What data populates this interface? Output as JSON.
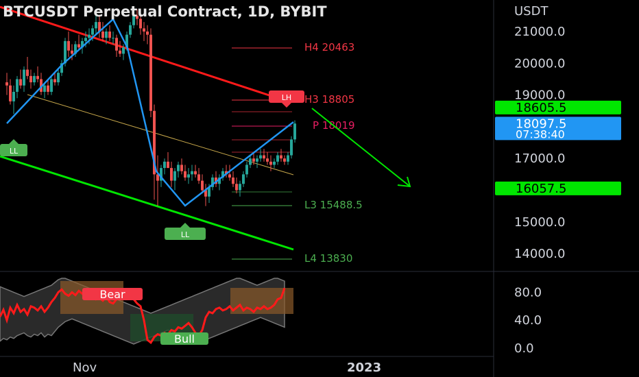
{
  "header": {
    "title": "BTCUSDT Perpetual Contract, 1D, BYBIT"
  },
  "price_axis": {
    "currency": "USDT",
    "ticks": [
      "21000.0",
      "20000.0",
      "19000.0",
      "17000.0",
      "15000.0",
      "14000.0"
    ],
    "badges": [
      {
        "id": "target-high",
        "text": "18605.5",
        "color": "#00e600",
        "text_color": "#000000"
      },
      {
        "id": "last-price",
        "text": "18097.5",
        "sub": "07:38:40",
        "color": "#2196f3",
        "text_color": "#ffffff"
      },
      {
        "id": "target-low",
        "text": "16057.5",
        "color": "#00e600",
        "text_color": "#000000"
      }
    ]
  },
  "pivot_levels": [
    {
      "label": "H4 20463",
      "value": 20463,
      "color": "#f23645"
    },
    {
      "label": "H3 18805",
      "value": 18805,
      "color": "#f23645"
    },
    {
      "label": "P 18019",
      "value": 18019,
      "color": "#e91e63"
    },
    {
      "label": "L3 15488.5",
      "value": 15488.5,
      "color": "#4caf50"
    },
    {
      "label": "L4 13830",
      "value": 13830,
      "color": "#4caf50"
    }
  ],
  "markers": [
    {
      "text": "LH",
      "color": "#f23645"
    },
    {
      "text": "LL",
      "color": "#4caf50"
    },
    {
      "text": "LL",
      "color": "#4caf50"
    }
  ],
  "oscillator": {
    "ticks": [
      "80.0",
      "40.0",
      "0.0"
    ],
    "labels": [
      {
        "text": "Bear",
        "color": "#f23645"
      },
      {
        "text": "Bull",
        "color": "#4caf50"
      }
    ]
  },
  "time_axis": {
    "ticks": [
      "Nov",
      "2023"
    ]
  },
  "colors": {
    "up": "#26a69a",
    "down": "#ef5350",
    "channel_top": "#ff1a1a",
    "channel_bottom": "#00e600",
    "zigzag": "#2196f3",
    "projection": "#00e600",
    "midline": "#c8a84b"
  },
  "chart_data": [
    {
      "type": "candlestick",
      "title": "BTCUSDT Perpetual Contract, 1D, BYBIT",
      "ylabel": "USDT",
      "ylim": [
        13500,
        22000
      ],
      "ohlc": [
        [
          19400,
          19700,
          19000,
          19300
        ],
        [
          19300,
          19500,
          18700,
          18800
        ],
        [
          18800,
          19300,
          18400,
          19100
        ],
        [
          19100,
          19600,
          18900,
          19500
        ],
        [
          19500,
          19800,
          19200,
          19300
        ],
        [
          19300,
          19900,
          19100,
          19800
        ],
        [
          19800,
          20200,
          19500,
          19600
        ],
        [
          19600,
          19800,
          19200,
          19400
        ],
        [
          19400,
          19700,
          19300,
          19600
        ],
        [
          19600,
          19900,
          19400,
          19500
        ],
        [
          19500,
          19700,
          19000,
          19100
        ],
        [
          19100,
          19400,
          18900,
          19300
        ],
        [
          19300,
          19500,
          19000,
          19100
        ],
        [
          19100,
          19600,
          19000,
          19500
        ],
        [
          19500,
          19700,
          19300,
          19400
        ],
        [
          19400,
          19800,
          19300,
          19700
        ],
        [
          19700,
          20100,
          19600,
          20000
        ],
        [
          20000,
          20800,
          19900,
          20700
        ],
        [
          20700,
          21000,
          20200,
          20400
        ],
        [
          20400,
          20600,
          20100,
          20300
        ],
        [
          20300,
          20700,
          20200,
          20600
        ],
        [
          20600,
          20900,
          20400,
          20500
        ],
        [
          20500,
          20800,
          20300,
          20700
        ],
        [
          20700,
          21000,
          20500,
          20800
        ],
        [
          20800,
          21100,
          20600,
          20900
        ],
        [
          20900,
          21200,
          20700,
          21100
        ],
        [
          21100,
          21500,
          20900,
          21300
        ],
        [
          21300,
          21500,
          20800,
          21000
        ],
        [
          21000,
          21300,
          20700,
          20800
        ],
        [
          20800,
          21100,
          20600,
          21000
        ],
        [
          21000,
          21200,
          20700,
          20800
        ],
        [
          20800,
          21000,
          20600,
          20800
        ],
        [
          20800,
          20900,
          20200,
          20400
        ],
        [
          20400,
          20700,
          20200,
          20300
        ],
        [
          20300,
          20600,
          20100,
          20500
        ],
        [
          20500,
          21000,
          20400,
          20900
        ],
        [
          20900,
          21300,
          20800,
          21200
        ],
        [
          21200,
          21600,
          21100,
          21500
        ],
        [
          21500,
          21700,
          21200,
          21400
        ],
        [
          21400,
          21600,
          20900,
          21100
        ],
        [
          21100,
          21300,
          20700,
          21000
        ],
        [
          21000,
          21200,
          20600,
          20900
        ],
        [
          20900,
          21100,
          18300,
          18500
        ],
        [
          18500,
          18700,
          15700,
          16500
        ],
        [
          16500,
          17100,
          15500,
          16300
        ],
        [
          16300,
          16800,
          16100,
          16700
        ],
        [
          16700,
          17000,
          16500,
          16900
        ],
        [
          16900,
          17200,
          16700,
          16700
        ],
        [
          16700,
          16900,
          16100,
          16300
        ],
        [
          16300,
          16700,
          16000,
          16600
        ],
        [
          16600,
          16900,
          16400,
          16800
        ],
        [
          16800,
          17000,
          16500,
          16600
        ],
        [
          16600,
          16800,
          16300,
          16400
        ],
        [
          16400,
          16700,
          16200,
          16500
        ],
        [
          16500,
          16800,
          16300,
          16600
        ],
        [
          16600,
          16800,
          16400,
          16500
        ],
        [
          16500,
          16700,
          16200,
          16300
        ],
        [
          16300,
          16500,
          15900,
          16000
        ],
        [
          16000,
          16200,
          15500,
          15800
        ],
        [
          15800,
          16200,
          15600,
          16100
        ],
        [
          16100,
          16500,
          16000,
          16400
        ],
        [
          16400,
          16600,
          16100,
          16200
        ],
        [
          16200,
          16500,
          16000,
          16400
        ],
        [
          16400,
          16700,
          16300,
          16600
        ],
        [
          16600,
          16800,
          16400,
          16500
        ],
        [
          16500,
          16800,
          16300,
          16400
        ],
        [
          16400,
          16600,
          16100,
          16200
        ],
        [
          16200,
          16400,
          15900,
          16000
        ],
        [
          16000,
          16300,
          15800,
          16200
        ],
        [
          16200,
          16600,
          16100,
          16500
        ],
        [
          16500,
          16900,
          16400,
          16800
        ],
        [
          16800,
          17100,
          16700,
          17000
        ],
        [
          17000,
          17200,
          16800,
          16900
        ],
        [
          16900,
          17100,
          16700,
          17000
        ],
        [
          17000,
          17300,
          16900,
          17100
        ],
        [
          17100,
          17300,
          16900,
          17000
        ],
        [
          17000,
          17200,
          16800,
          16900
        ],
        [
          16900,
          17100,
          16600,
          16800
        ],
        [
          16800,
          17000,
          16700,
          16900
        ],
        [
          16900,
          17200,
          16800,
          17100
        ],
        [
          17100,
          17300,
          16900,
          17000
        ],
        [
          17000,
          17100,
          16800,
          16900
        ],
        [
          16900,
          17200,
          16800,
          17100
        ],
        [
          17100,
          17700,
          17000,
          17600
        ],
        [
          17600,
          18200,
          17500,
          18100
        ]
      ]
    },
    {
      "type": "line",
      "title": "Oscillator",
      "ylim": [
        0,
        100
      ],
      "series": [
        {
          "values": [
            45,
            55,
            40,
            58,
            50,
            62,
            52,
            56,
            48,
            60,
            58,
            54,
            60,
            52,
            58,
            66,
            72,
            80,
            84,
            78,
            75,
            80,
            76,
            82,
            78,
            72,
            74,
            78,
            70,
            72,
            68,
            74,
            66,
            64,
            70,
            72,
            76,
            82,
            78,
            70,
            64,
            60,
            40,
            12,
            8,
            16,
            20,
            18,
            22,
            20,
            26,
            24,
            30,
            28,
            32,
            36,
            30,
            22,
            18,
            26,
            44,
            52,
            50,
            56,
            58,
            54,
            56,
            60,
            54,
            58,
            62,
            54,
            58,
            56,
            52,
            58,
            56,
            60,
            56,
            58,
            62,
            70,
            72,
            86
          ]
        },
        {
          "values": [
            10,
            14,
            12,
            16,
            14,
            18,
            20,
            22,
            18,
            16,
            20,
            18,
            22,
            16,
            20,
            18,
            24,
            30,
            34,
            38,
            40,
            42,
            40,
            38,
            36,
            34,
            32,
            30,
            28,
            26,
            24,
            22,
            20,
            18,
            16,
            14,
            12,
            10,
            8,
            6,
            8,
            10,
            12,
            14,
            16,
            18,
            20,
            22,
            24,
            26,
            24,
            22,
            20,
            18,
            16,
            14,
            12,
            10,
            8,
            10,
            12,
            14,
            16,
            18,
            20,
            22,
            24,
            26,
            28,
            30,
            32,
            34,
            36,
            38,
            40,
            42,
            44,
            42,
            40,
            38,
            36,
            34,
            32,
            30
          ]
        },
        {
          "values": [
            88,
            86,
            84,
            82,
            80,
            78,
            76,
            74,
            76,
            78,
            80,
            82,
            84,
            86,
            88,
            90,
            94,
            98,
            100,
            100,
            98,
            96,
            94,
            92,
            90,
            88,
            86,
            84,
            82,
            80,
            78,
            76,
            74,
            72,
            70,
            68,
            66,
            64,
            62,
            60,
            58,
            56,
            54,
            52,
            50,
            52,
            54,
            56,
            58,
            60,
            62,
            64,
            66,
            68,
            70,
            72,
            74,
            76,
            78,
            80,
            82,
            84,
            86,
            88,
            90,
            92,
            94,
            96,
            98,
            100,
            100,
            98,
            96,
            94,
            92,
            90,
            92,
            94,
            96,
            98,
            100,
            100,
            98,
            96
          ]
        }
      ]
    }
  ]
}
